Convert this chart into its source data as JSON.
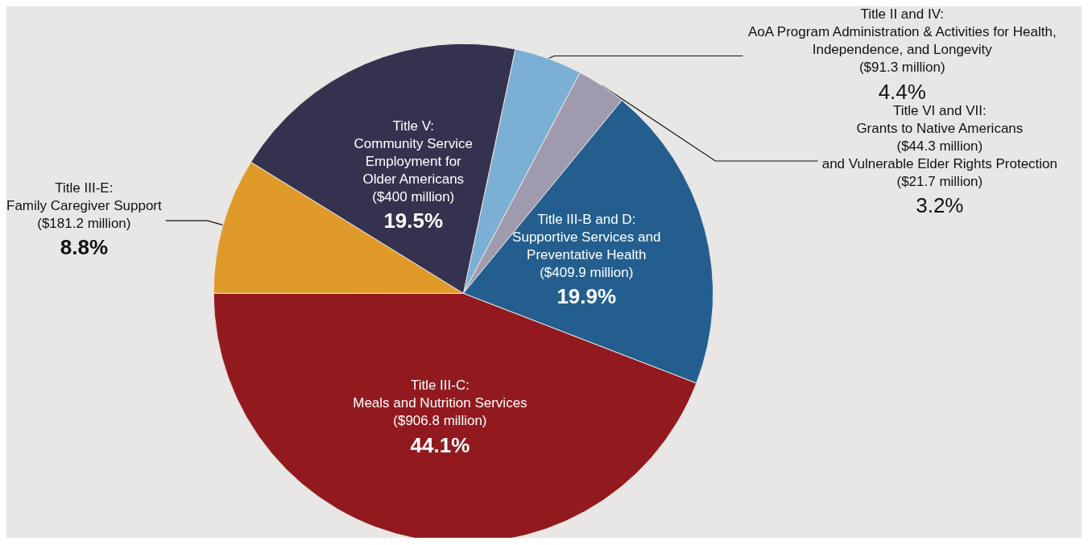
{
  "chart_data": {
    "type": "pie",
    "categories": [
      "Title II and IV:\nAoA Program Administration & Activities for Health,\nIndependence, and Longevity\n($91.3 million)",
      "Title VI and VII:\nGrants to Native Americans\n($44.3 million)\nand Vulnerable Elder Rights Protection\n($21.7 million)",
      "Title III-B and D:\nSupportive Services and\nPreventative Health\n($409.9 million)",
      "Title III-C:\nMeals and Nutrition Services\n($906.8 million)",
      "Title III-E:\nFamily Caregiver Support\n($181.2 million)",
      "Title V:\nCommunity Service\nEmployment for\nOlder Americans\n($400 million)"
    ],
    "values": [
      4.4,
      3.2,
      19.9,
      44.1,
      8.8,
      19.5
    ],
    "value_labels": [
      "4.4%",
      "3.2%",
      "19.9%",
      "44.1%",
      "8.8%",
      "19.5%"
    ],
    "colors": [
      "#7bafd4",
      "#a09aae",
      "#235e8f",
      "#921a1f",
      "#e09a2a",
      "#35324f"
    ]
  }
}
